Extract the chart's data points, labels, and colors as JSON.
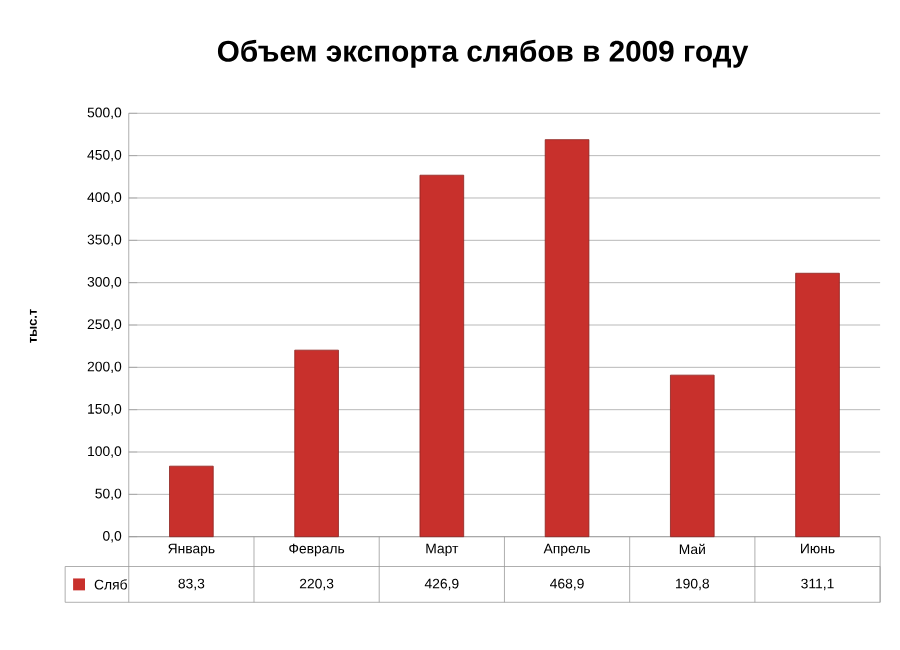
{
  "chart_data": {
    "type": "bar",
    "title": "Объем экспорта слябов в 2009 году",
    "ylabel": "тыс.т",
    "categories": [
      "Январь",
      "Февраль",
      "Март",
      "Апрель",
      "Май",
      "Июнь"
    ],
    "series": [
      {
        "name": "Сляб",
        "color": "#c8302c",
        "values": [
          83.3,
          220.3,
          426.9,
          468.9,
          190.8,
          311.1
        ],
        "value_labels": [
          "83,3",
          "220,3",
          "426,9",
          "468,9",
          "190,8",
          "311,1"
        ]
      }
    ],
    "ylim": [
      0,
      500
    ],
    "yticks": [
      {
        "value": 0,
        "label": "0,0"
      },
      {
        "value": 50,
        "label": "50,0"
      },
      {
        "value": 100,
        "label": "100,0"
      },
      {
        "value": 150,
        "label": "150,0"
      },
      {
        "value": 200,
        "label": "200,0"
      },
      {
        "value": 250,
        "label": "250,0"
      },
      {
        "value": 300,
        "label": "300,0"
      },
      {
        "value": 350,
        "label": "350,0"
      },
      {
        "value": 400,
        "label": "400,0"
      },
      {
        "value": 450,
        "label": "450,0"
      },
      {
        "value": 500,
        "label": "500,0"
      }
    ],
    "grid": true,
    "legend": "bottom"
  }
}
